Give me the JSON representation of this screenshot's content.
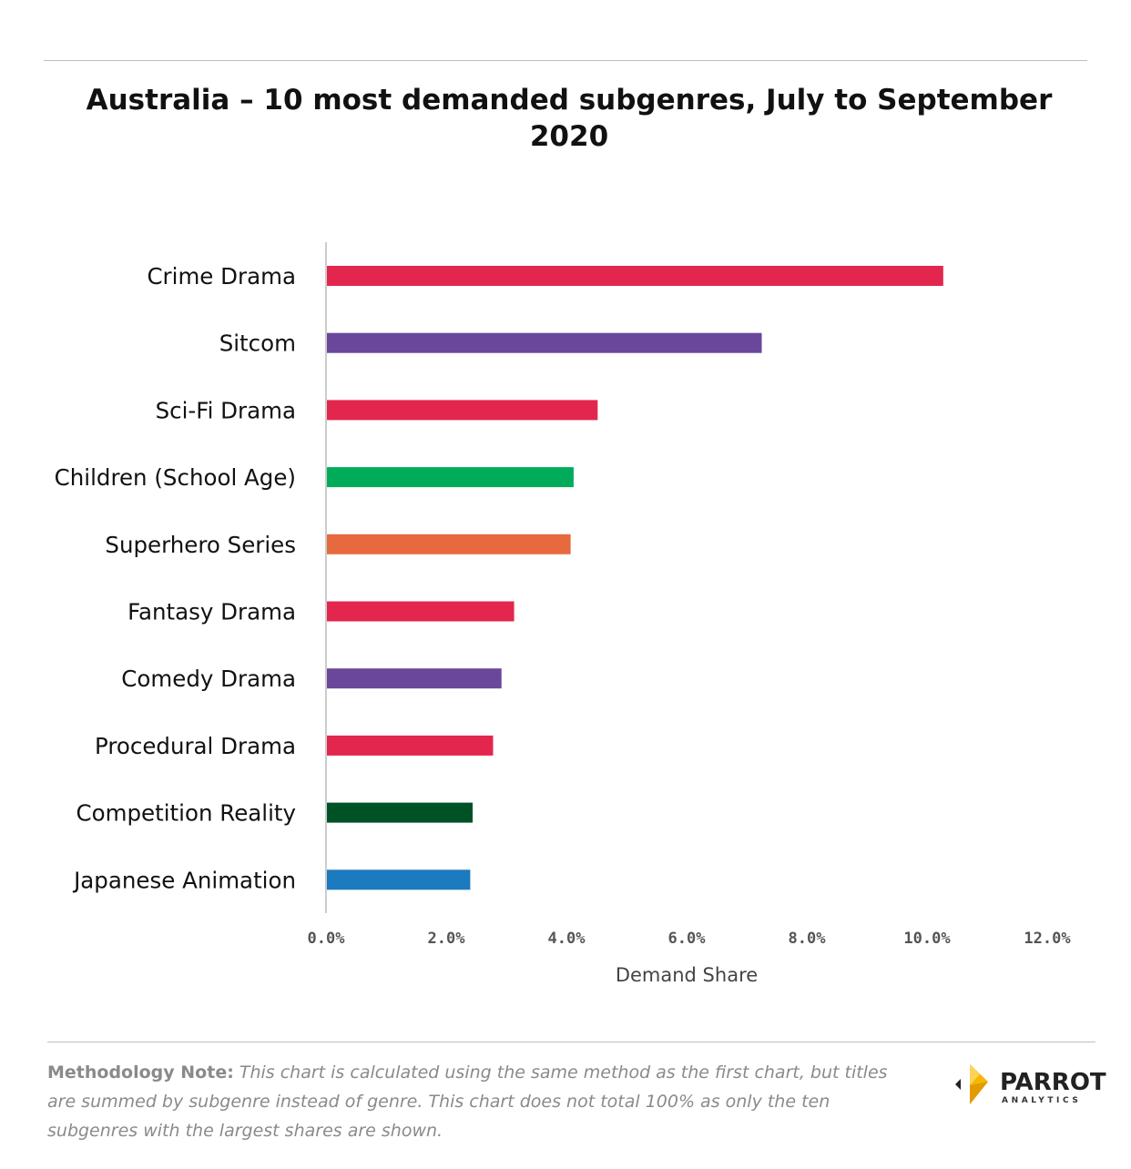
{
  "chart_data": {
    "type": "bar",
    "orientation": "horizontal",
    "title": "Australia – 10 most demanded subgenres, July to September 2020",
    "xlabel": "Demand Share",
    "ylabel": "",
    "xlim": [
      0,
      12
    ],
    "x_ticks": [
      0,
      2,
      4,
      6,
      8,
      10,
      12
    ],
    "x_tick_labels": [
      "0.0%",
      "2.0%",
      "4.0%",
      "6.0%",
      "8.0%",
      "10.0%",
      "12.0%"
    ],
    "grid": false,
    "legend": "none",
    "categories": [
      "Crime Drama",
      "Sitcom",
      "Sci-Fi Drama",
      "Children (School Age)",
      "Superhero Series",
      "Fantasy Drama",
      "Comedy Drama",
      "Procedural Drama",
      "Competition Reality",
      "Japanese Animation"
    ],
    "values": [
      10.27,
      7.25,
      4.52,
      4.12,
      4.07,
      3.13,
      2.92,
      2.78,
      2.44,
      2.4
    ],
    "colors": [
      "#e3264e",
      "#6a479b",
      "#e3264e",
      "#00ac5a",
      "#e66a3d",
      "#e3264e",
      "#6a479b",
      "#e3264e",
      "#005226",
      "#1c7abf"
    ]
  },
  "footnote": {
    "label": "Methodology Note:",
    "text": "This chart is calculated using the same method as the first chart, but titles are summed by subgenre instead of genre. This chart does not total 100% as only the ten subgenres with the largest shares are shown."
  },
  "logo": {
    "name": "PARROT",
    "subtitle": "ANALYTICS",
    "accent_color": "#f5b800"
  }
}
